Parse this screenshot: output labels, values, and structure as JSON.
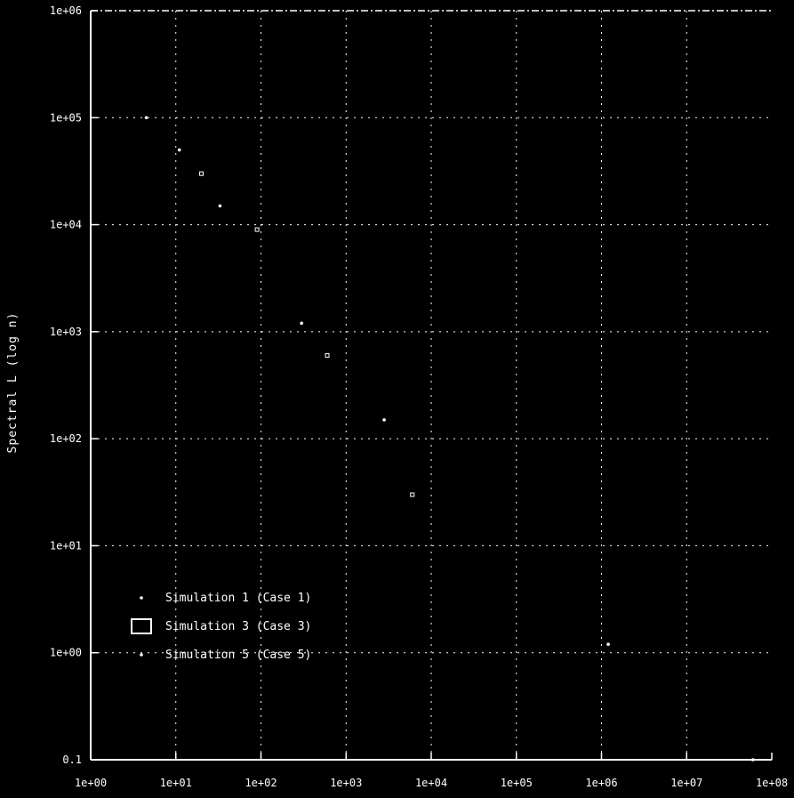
{
  "chart_data": {
    "type": "scatter",
    "title": "",
    "xlabel": "",
    "ylabel": "Spectral L (log n)",
    "x_log": true,
    "y_log": true,
    "xlim": [
      1,
      100000000
    ],
    "ylim": [
      0.1,
      1000000
    ],
    "x_ticks": [
      "1e+00",
      "1e+01",
      "1e+02",
      "1e+03",
      "1e+04",
      "1e+05",
      "1e+06",
      "1e+07",
      "1e+08"
    ],
    "y_ticks": [
      "0.1",
      "1e+00",
      "1e+01",
      "1e+02",
      "1e+03",
      "1e+04",
      "1e+05",
      "1e+06"
    ],
    "grid": true,
    "legend_position": "lower-left",
    "series": [
      {
        "name": "Simulation 1 (Case 1)",
        "marker": "point",
        "x": [
          4.5,
          11,
          33,
          300,
          2800
        ],
        "y": 100000,
        "y_values": [
          100000,
          50000,
          15000,
          1200,
          150
        ]
      },
      {
        "name": "Simulation 3 (Case 3)",
        "marker": "square-open",
        "x": [
          20,
          90,
          600,
          6000
        ],
        "y_values": [
          30000,
          9000,
          600,
          30
        ]
      },
      {
        "name": "Simulation 5 (Case 5)",
        "marker": "point",
        "x": [
          1200000,
          60000000
        ],
        "y_values": [
          1.2,
          0.1
        ]
      }
    ]
  }
}
